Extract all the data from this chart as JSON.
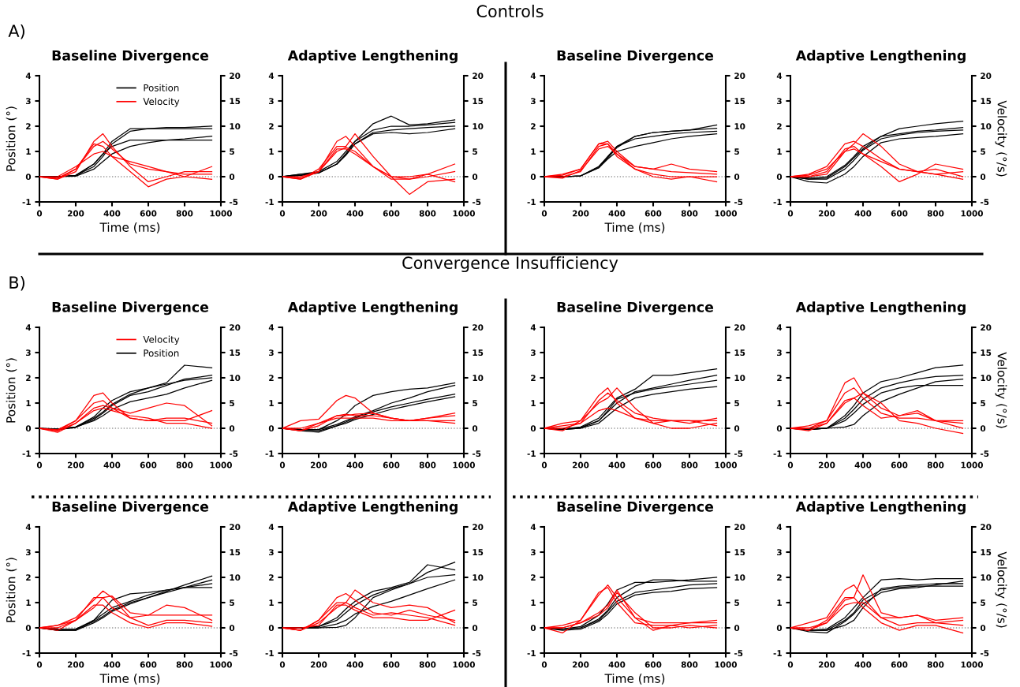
{
  "chart_data": [
    {
      "type": "line",
      "title": "Baseline Divergence",
      "xlabel": "Time (ms)",
      "ylabel": "Position (°)",
      "annotations": [
        "A)",
        "Controls"
      ],
      "legend": "top",
      "xlim": [
        0,
        1000
      ],
      "xticks": [
        0,
        200,
        400,
        600,
        800,
        1000
      ],
      "ylim": [
        -1,
        4
      ],
      "yticks": [
        -1,
        0,
        1,
        2,
        3,
        4
      ],
      "y2lim": [
        -5,
        20
      ],
      "y2ticks": [
        -5,
        0,
        5,
        10,
        15,
        20
      ],
      "ref_lines": [
        {
          "axis": "y",
          "value": 0,
          "color": "#999999",
          "line_style": "dotted"
        }
      ],
      "x": [
        0,
        100,
        200,
        300,
        350,
        400,
        500,
        600,
        700,
        800,
        950
      ],
      "series": [
        {
          "name": "Position",
          "color": "#000000",
          "values": [
            0,
            0,
            0.05,
            0.5,
            0.9,
            1.4,
            1.9,
            1.9,
            1.95,
            1.95,
            2.0
          ]
        },
        {
          "color": "#000000",
          "values": [
            0,
            0,
            0.05,
            0.4,
            0.8,
            1.3,
            1.8,
            1.9,
            1.9,
            1.9,
            1.9
          ]
        },
        {
          "color": "#000000",
          "values": [
            0,
            0,
            0.02,
            0.3,
            0.6,
            0.9,
            1.2,
            1.35,
            1.45,
            1.5,
            1.6
          ]
        },
        {
          "color": "#000000",
          "values": [
            0,
            0,
            0.05,
            0.5,
            0.9,
            1.2,
            1.45,
            1.45,
            1.45,
            1.45,
            1.45
          ]
        },
        {
          "name": "Velocity",
          "color": "#ff0000",
          "axis": "y2",
          "values": [
            0,
            -0.5,
            1,
            7,
            8.5,
            6,
            2,
            -1,
            0,
            1,
            1
          ]
        },
        {
          "color": "#ff0000",
          "axis": "y2",
          "values": [
            0,
            -0.3,
            1.5,
            6,
            7,
            5.5,
            2.5,
            1.5,
            1,
            0.5,
            0.5
          ]
        },
        {
          "color": "#ff0000",
          "axis": "y2",
          "values": [
            0,
            0,
            2,
            4.5,
            5,
            4,
            3,
            2,
            1,
            0,
            -0.5
          ]
        },
        {
          "color": "#ff0000",
          "axis": "y2",
          "values": [
            0,
            -0.5,
            1.5,
            6.5,
            6,
            4,
            1,
            -2,
            -0.5,
            0,
            2
          ]
        }
      ]
    },
    {
      "type": "line",
      "title": "Adaptive Lengthening",
      "xlim": [
        0,
        1000
      ],
      "xticks": [
        0,
        200,
        400,
        600,
        800,
        1000
      ],
      "ylim": [
        -1,
        4
      ],
      "yticks": [
        -1,
        0,
        1,
        2,
        3,
        4
      ],
      "y2lim": [
        -5,
        20
      ],
      "y2ticks": [
        -5,
        0,
        5,
        10,
        15,
        20
      ],
      "ref_lines": [
        {
          "axis": "y",
          "value": 0,
          "color": "#999999",
          "line_style": "dotted"
        }
      ],
      "x": [
        0,
        100,
        200,
        300,
        350,
        400,
        500,
        600,
        700,
        800,
        950
      ],
      "series": [
        {
          "color": "#000000",
          "values": [
            0,
            0.1,
            0.2,
            0.6,
            1.0,
            1.4,
            1.85,
            2.0,
            2.0,
            2.05,
            2.15
          ]
        },
        {
          "color": "#000000",
          "values": [
            0,
            0.1,
            0.15,
            0.5,
            0.9,
            1.4,
            2.1,
            2.4,
            2.05,
            2.1,
            2.25
          ]
        },
        {
          "color": "#000000",
          "values": [
            0,
            0.05,
            0.15,
            0.5,
            0.85,
            1.3,
            1.7,
            1.75,
            1.7,
            1.75,
            1.9
          ]
        },
        {
          "color": "#000000",
          "values": [
            0,
            0.05,
            0.15,
            0.5,
            0.9,
            1.3,
            1.75,
            1.85,
            1.9,
            1.95,
            2.0
          ]
        },
        {
          "color": "#ff0000",
          "axis": "y2",
          "values": [
            0,
            -0.3,
            1,
            7,
            8,
            6,
            2,
            0,
            -0.5,
            0,
            1
          ]
        },
        {
          "color": "#ff0000",
          "axis": "y2",
          "values": [
            0,
            -0.5,
            1,
            5,
            5.8,
            5,
            2,
            -0.5,
            -0.5,
            0.5,
            -1
          ]
        },
        {
          "color": "#ff0000",
          "axis": "y2",
          "values": [
            0,
            -0.5,
            1.5,
            6,
            6,
            8.5,
            4,
            0,
            -3.5,
            -1,
            -0.5
          ]
        },
        {
          "color": "#ff0000",
          "axis": "y2",
          "values": [
            0,
            0,
            1,
            5.5,
            5.5,
            4.5,
            2,
            0,
            0,
            0.5,
            2.5
          ]
        }
      ]
    },
    {
      "type": "line",
      "title": "Baseline Divergence",
      "xlabel": "Time (ms)",
      "xlim": [
        0,
        1000
      ],
      "xticks": [
        0,
        200,
        400,
        600,
        800,
        1000
      ],
      "ylim": [
        -1,
        4
      ],
      "yticks": [
        -1,
        0,
        1,
        2,
        3,
        4
      ],
      "y2lim": [
        -5,
        20
      ],
      "y2ticks": [
        -5,
        0,
        5,
        10,
        15,
        20
      ],
      "ref_lines": [
        {
          "axis": "y",
          "value": 0,
          "color": "#999999",
          "line_style": "dotted"
        }
      ],
      "x": [
        0,
        100,
        200,
        300,
        350,
        400,
        500,
        600,
        700,
        800,
        950
      ],
      "series": [
        {
          "color": "#000000",
          "values": [
            0,
            0,
            0.03,
            0.4,
            0.8,
            1.2,
            1.6,
            1.75,
            1.8,
            1.85,
            1.92
          ]
        },
        {
          "color": "#000000",
          "values": [
            0,
            0,
            0.03,
            0.35,
            0.75,
            1.15,
            1.6,
            1.75,
            1.8,
            1.85,
            2.05
          ]
        },
        {
          "color": "#000000",
          "values": [
            0,
            0,
            0.03,
            0.4,
            0.8,
            1.2,
            1.5,
            1.6,
            1.7,
            1.75,
            1.8
          ]
        },
        {
          "color": "#000000",
          "values": [
            0,
            0,
            0.03,
            0.35,
            0.7,
            1.0,
            1.2,
            1.35,
            1.5,
            1.6,
            1.7
          ]
        },
        {
          "color": "#ff0000",
          "axis": "y2",
          "values": [
            0,
            0.5,
            1.5,
            6.5,
            7,
            5,
            2,
            1.5,
            1,
            0.8,
            0.5
          ]
        },
        {
          "color": "#ff0000",
          "axis": "y2",
          "values": [
            0,
            0,
            1,
            6,
            6.5,
            4.5,
            2,
            1.5,
            2.5,
            1.5,
            1
          ]
        },
        {
          "color": "#ff0000",
          "axis": "y2",
          "values": [
            0,
            -0.3,
            1.2,
            5.5,
            6,
            4.5,
            1.5,
            0.5,
            0,
            0,
            0
          ]
        },
        {
          "color": "#ff0000",
          "axis": "y2",
          "values": [
            0,
            0.3,
            1.5,
            6.5,
            6.5,
            4,
            1.5,
            0,
            -0.5,
            0,
            -1
          ]
        }
      ]
    },
    {
      "type": "line",
      "title": "Adaptive Lengthening",
      "y2label": "Velocity (°/s)",
      "xlim": [
        0,
        1000
      ],
      "xticks": [
        0,
        200,
        400,
        600,
        800,
        1000
      ],
      "ylim": [
        -1,
        4
      ],
      "yticks": [
        -1,
        0,
        1,
        2,
        3,
        4
      ],
      "y2lim": [
        -5,
        20
      ],
      "y2ticks": [
        -5,
        0,
        5,
        10,
        15,
        20
      ],
      "ref_lines": [
        {
          "axis": "y",
          "value": 0,
          "color": "#999999",
          "line_style": "dotted"
        }
      ],
      "x": [
        0,
        100,
        200,
        300,
        350,
        400,
        500,
        600,
        700,
        800,
        950
      ],
      "series": [
        {
          "color": "#000000",
          "values": [
            0,
            -0.1,
            -0.05,
            0.4,
            0.75,
            1.1,
            1.6,
            1.9,
            2.0,
            2.1,
            2.2
          ]
        },
        {
          "color": "#000000",
          "values": [
            0,
            -0.05,
            0,
            0.45,
            0.8,
            1.2,
            1.6,
            1.7,
            1.8,
            1.85,
            1.95
          ]
        },
        {
          "color": "#000000",
          "values": [
            0,
            -0.2,
            -0.25,
            0.1,
            0.4,
            0.8,
            1.35,
            1.5,
            1.55,
            1.6,
            1.7
          ]
        },
        {
          "color": "#000000",
          "values": [
            0,
            -0.1,
            -0.1,
            0.3,
            0.65,
            1.05,
            1.5,
            1.65,
            1.75,
            1.8,
            1.85
          ]
        },
        {
          "color": "#ff0000",
          "axis": "y2",
          "values": [
            0,
            0.5,
            2,
            6.5,
            7,
            6,
            3.5,
            1.5,
            1,
            1.5,
            0
          ]
        },
        {
          "color": "#ff0000",
          "axis": "y2",
          "values": [
            0,
            0.3,
            1.5,
            5,
            6.5,
            8.5,
            6,
            2.5,
            1,
            0.5,
            1
          ]
        },
        {
          "color": "#ff0000",
          "axis": "y2",
          "values": [
            0,
            0,
            1,
            5.5,
            6,
            4.5,
            2,
            -1,
            0.5,
            2.5,
            1.5
          ]
        },
        {
          "color": "#ff0000",
          "axis": "y2",
          "values": [
            0,
            0,
            0.5,
            5,
            5.5,
            4.5,
            3,
            1.5,
            1,
            0.5,
            -0.5
          ]
        }
      ]
    },
    {
      "type": "line",
      "title": "Baseline Divergence",
      "ylabel": "Position (°)",
      "annotations": [
        "B)",
        "Convergence Insufficiency"
      ],
      "legend": "top",
      "xlim": [
        0,
        1000
      ],
      "xticks": [
        0,
        200,
        400,
        600,
        800,
        1000
      ],
      "ylim": [
        -1,
        4
      ],
      "yticks": [
        -1,
        0,
        1,
        2,
        3,
        4
      ],
      "y2lim": [
        -5,
        20
      ],
      "y2ticks": [
        -5,
        0,
        5,
        10,
        15,
        20
      ],
      "ref_lines": [
        {
          "axis": "y",
          "value": 0,
          "color": "#999999",
          "line_style": "dotted"
        }
      ],
      "x": [
        0,
        100,
        200,
        300,
        350,
        400,
        500,
        600,
        700,
        800,
        950
      ],
      "series": [
        {
          "name": "Velocity",
          "color": "#ff0000",
          "axis": "y2",
          "values": [
            0,
            -0.5,
            1.5,
            6.5,
            7,
            5,
            2,
            1.5,
            2,
            2,
            1
          ]
        },
        {
          "color": "#ff0000",
          "axis": "y2",
          "values": [
            0,
            -0.8,
            1,
            4,
            4.5,
            4,
            3,
            4,
            5,
            4.5,
            0.5
          ]
        },
        {
          "color": "#ff0000",
          "axis": "y2",
          "values": [
            0,
            -0.3,
            1.5,
            5,
            5.5,
            4,
            2,
            1.5,
            1.5,
            1.5,
            3.5
          ]
        },
        {
          "color": "#ff0000",
          "axis": "y2",
          "values": [
            0,
            -0.5,
            1,
            3.5,
            4,
            3.5,
            2.5,
            2,
            1,
            1,
            0
          ]
        },
        {
          "name": "Position",
          "color": "#000000",
          "values": [
            0,
            -0.05,
            0.05,
            0.4,
            0.65,
            0.95,
            1.35,
            1.6,
            1.8,
            2.5,
            2.4
          ]
        },
        {
          "color": "#000000",
          "values": [
            0,
            -0.05,
            0.03,
            0.35,
            0.6,
            0.9,
            1.3,
            1.45,
            1.7,
            1.95,
            2.1
          ]
        },
        {
          "color": "#000000",
          "values": [
            0,
            -0.03,
            0.05,
            0.3,
            0.5,
            0.75,
            1.05,
            1.2,
            1.35,
            1.6,
            1.9
          ]
        },
        {
          "color": "#000000",
          "values": [
            0,
            -0.03,
            0.05,
            0.45,
            0.8,
            1.1,
            1.45,
            1.6,
            1.75,
            1.9,
            2.0
          ]
        }
      ]
    },
    {
      "type": "line",
      "title": "Adaptive Lengthening",
      "xlim": [
        0,
        1000
      ],
      "xticks": [
        0,
        200,
        400,
        600,
        800,
        1000
      ],
      "ylim": [
        -1,
        4
      ],
      "yticks": [
        -1,
        0,
        1,
        2,
        3,
        4
      ],
      "y2lim": [
        -5,
        20
      ],
      "y2ticks": [
        -5,
        0,
        5,
        10,
        15,
        20
      ],
      "ref_lines": [
        {
          "axis": "y",
          "value": 0,
          "color": "#999999",
          "line_style": "dotted"
        }
      ],
      "x": [
        0,
        100,
        200,
        300,
        350,
        400,
        500,
        600,
        700,
        800,
        950
      ],
      "series": [
        {
          "color": "#000000",
          "values": [
            0,
            -0.05,
            -0.05,
            0.3,
            0.55,
            0.9,
            1.3,
            1.45,
            1.55,
            1.6,
            1.8
          ]
        },
        {
          "color": "#000000",
          "values": [
            0,
            -0.05,
            -0.05,
            0.15,
            0.3,
            0.45,
            0.7,
            1.0,
            1.2,
            1.45,
            1.7
          ]
        },
        {
          "color": "#000000",
          "values": [
            0,
            -0.1,
            -0.15,
            0.1,
            0.2,
            0.35,
            0.55,
            0.75,
            0.9,
            1.05,
            1.25
          ]
        },
        {
          "color": "#000000",
          "values": [
            0,
            -0.05,
            -0.1,
            0.1,
            0.25,
            0.4,
            0.65,
            0.85,
            1.0,
            1.15,
            1.35
          ]
        },
        {
          "color": "#ff0000",
          "axis": "y2",
          "values": [
            0,
            1.5,
            1.8,
            5.5,
            6.5,
            6,
            3,
            2,
            1.5,
            2,
            2.5
          ]
        },
        {
          "color": "#ff0000",
          "axis": "y2",
          "values": [
            0,
            -0.5,
            1,
            2.5,
            2.5,
            2.8,
            3,
            2,
            1.5,
            2,
            3
          ]
        },
        {
          "color": "#ff0000",
          "axis": "y2",
          "values": [
            0,
            -0.5,
            0.5,
            2.5,
            2.8,
            2.5,
            2.5,
            2,
            1.5,
            1.5,
            1.5
          ]
        },
        {
          "color": "#ff0000",
          "axis": "y2",
          "values": [
            0,
            0,
            1,
            2,
            2,
            2,
            2,
            1.5,
            1.5,
            1.5,
            1
          ]
        }
      ]
    },
    {
      "type": "line",
      "title": "Baseline Divergence",
      "xlim": [
        0,
        1000
      ],
      "xticks": [
        0,
        200,
        400,
        600,
        800,
        1000
      ],
      "ylim": [
        -1,
        4
      ],
      "yticks": [
        -1,
        0,
        1,
        2,
        3,
        4
      ],
      "y2lim": [
        -5,
        20
      ],
      "y2ticks": [
        -5,
        0,
        5,
        10,
        15,
        20
      ],
      "ref_lines": [
        {
          "axis": "y",
          "value": 0,
          "color": "#999999",
          "line_style": "dotted"
        }
      ],
      "x": [
        0,
        100,
        200,
        300,
        350,
        400,
        500,
        600,
        700,
        800,
        950
      ],
      "series": [
        {
          "color": "#000000",
          "values": [
            0,
            -0.03,
            0.05,
            0.4,
            0.8,
            1.2,
            1.55,
            2.1,
            2.1,
            2.2,
            2.35
          ]
        },
        {
          "color": "#000000",
          "values": [
            0,
            -0.03,
            0.03,
            0.3,
            0.65,
            1.0,
            1.45,
            1.6,
            1.75,
            1.9,
            2.1
          ]
        },
        {
          "color": "#000000",
          "values": [
            0,
            -0.05,
            0,
            0.3,
            0.7,
            1.15,
            1.4,
            1.55,
            1.65,
            1.75,
            1.9
          ]
        },
        {
          "color": "#000000",
          "values": [
            0,
            -0.05,
            0,
            0.2,
            0.5,
            0.8,
            1.2,
            1.35,
            1.45,
            1.55,
            1.65
          ]
        },
        {
          "color": "#ff0000",
          "axis": "y2",
          "values": [
            0,
            1,
            1.5,
            6.5,
            8,
            5,
            2,
            1,
            1.5,
            1.5,
            1.5
          ]
        },
        {
          "color": "#ff0000",
          "axis": "y2",
          "values": [
            0,
            0,
            1,
            5.5,
            7,
            5.5,
            3,
            2,
            1.5,
            1.5,
            0.5
          ]
        },
        {
          "color": "#ff0000",
          "axis": "y2",
          "values": [
            0,
            -0.5,
            1.5,
            5,
            6,
            8,
            4,
            1,
            0,
            0,
            1.0
          ]
        },
        {
          "color": "#ff0000",
          "axis": "y2",
          "values": [
            0,
            0.5,
            1,
            3.5,
            4,
            3.5,
            2,
            1.5,
            1.5,
            1,
            2.0
          ]
        }
      ]
    },
    {
      "type": "line",
      "title": "Adaptive Lengthening",
      "y2label": "Velocity (°/s)",
      "xlim": [
        0,
        1000
      ],
      "xticks": [
        0,
        200,
        400,
        600,
        800,
        1000
      ],
      "ylim": [
        -1,
        4
      ],
      "yticks": [
        -1,
        0,
        1,
        2,
        3,
        4
      ],
      "y2lim": [
        -5,
        20
      ],
      "y2ticks": [
        -5,
        0,
        5,
        10,
        15,
        20
      ],
      "ref_lines": [
        {
          "axis": "y",
          "value": 0,
          "color": "#999999",
          "line_style": "dotted"
        }
      ],
      "x": [
        0,
        100,
        200,
        300,
        350,
        400,
        500,
        600,
        700,
        800,
        950
      ],
      "series": [
        {
          "color": "#000000",
          "values": [
            0,
            -0.05,
            0,
            0.5,
            0.9,
            1.4,
            1.85,
            2.0,
            2.2,
            2.4,
            2.5
          ]
        },
        {
          "color": "#000000",
          "values": [
            0,
            -0.05,
            0,
            0.4,
            0.75,
            1.15,
            1.6,
            1.8,
            1.95,
            2.05,
            2.1
          ]
        },
        {
          "color": "#000000",
          "values": [
            0,
            -0.05,
            0,
            0.3,
            0.6,
            0.95,
            1.4,
            1.6,
            1.7,
            1.7,
            1.7
          ]
        },
        {
          "color": "#000000",
          "values": [
            0,
            0,
            0,
            0.05,
            0.15,
            0.5,
            1.05,
            1.35,
            1.6,
            1.85,
            1.95
          ]
        },
        {
          "color": "#ff0000",
          "axis": "y2",
          "values": [
            0,
            0.5,
            1.5,
            9,
            10,
            7,
            4,
            2.5,
            3,
            1.5,
            1
          ]
        },
        {
          "color": "#ff0000",
          "axis": "y2",
          "values": [
            0,
            0,
            1.5,
            7,
            8,
            6,
            3,
            2,
            2,
            1.5,
            0
          ]
        },
        {
          "color": "#ff0000",
          "axis": "y2",
          "values": [
            0,
            -0.5,
            1,
            5,
            6,
            7,
            5,
            1.5,
            1,
            0,
            -1
          ]
        },
        {
          "color": "#ff0000",
          "axis": "y2",
          "values": [
            0,
            0,
            1,
            5.5,
            6,
            4.5,
            2,
            2.5,
            3.5,
            1.5,
            1.5
          ]
        }
      ]
    },
    {
      "type": "line",
      "title": "Baseline Divergence",
      "xlabel": "Time (ms)",
      "ylabel": "Position (°)",
      "xlim": [
        0,
        1000
      ],
      "xticks": [
        0,
        200,
        400,
        600,
        800,
        1000
      ],
      "ylim": [
        -1,
        4
      ],
      "yticks": [
        -1,
        0,
        1,
        2,
        3,
        4
      ],
      "y2lim": [
        -5,
        20
      ],
      "y2ticks": [
        -5,
        0,
        5,
        10,
        15,
        20
      ],
      "ref_lines": [
        {
          "axis": "y",
          "value": 0,
          "color": "#999999",
          "line_style": "dotted"
        }
      ],
      "x": [
        0,
        100,
        200,
        300,
        350,
        400,
        500,
        600,
        700,
        800,
        950
      ],
      "series": [
        {
          "color": "#000000",
          "values": [
            0,
            -0.05,
            -0.05,
            0.3,
            0.7,
            1.1,
            1.35,
            1.4,
            1.5,
            1.6,
            1.75
          ]
        },
        {
          "color": "#000000",
          "values": [
            0,
            -0.1,
            -0.1,
            0.2,
            0.4,
            0.65,
            0.95,
            1.2,
            1.4,
            1.6,
            1.9
          ]
        },
        {
          "color": "#000000",
          "values": [
            0,
            -0.1,
            -0.1,
            0.3,
            0.55,
            0.8,
            1.05,
            1.3,
            1.5,
            1.6,
            1.6
          ]
        },
        {
          "color": "#000000",
          "values": [
            0,
            -0.05,
            -0.05,
            0.25,
            0.45,
            0.7,
            1.0,
            1.2,
            1.45,
            1.7,
            2.05
          ]
        },
        {
          "color": "#ff0000",
          "axis": "y2",
          "values": [
            0,
            0.5,
            2,
            5.5,
            7.3,
            6,
            2,
            0.5,
            1.5,
            1.5,
            1
          ]
        },
        {
          "color": "#ff0000",
          "axis": "y2",
          "values": [
            0,
            0.5,
            1.5,
            4,
            6,
            6.3,
            3,
            2.5,
            2.5,
            2.5,
            2.5
          ]
        },
        {
          "color": "#ff0000",
          "axis": "y2",
          "values": [
            0,
            -0.5,
            1.5,
            6,
            6,
            4,
            2,
            2.5,
            4.5,
            4,
            1.5
          ]
        },
        {
          "color": "#ff0000",
          "axis": "y2",
          "values": [
            0,
            0,
            1.5,
            4.5,
            4.5,
            3,
            1,
            0,
            1,
            1,
            0.3
          ]
        }
      ]
    },
    {
      "type": "line",
      "title": "Adaptive Lengthening",
      "xlim": [
        0,
        1000
      ],
      "xticks": [
        0,
        200,
        400,
        600,
        800,
        1000
      ],
      "ylim": [
        -1,
        4
      ],
      "yticks": [
        -1,
        0,
        1,
        2,
        3,
        4
      ],
      "y2lim": [
        -5,
        20
      ],
      "y2ticks": [
        -5,
        0,
        5,
        10,
        15,
        20
      ],
      "ref_lines": [
        {
          "axis": "y",
          "value": 0,
          "color": "#999999",
          "line_style": "dotted"
        }
      ],
      "x": [
        0,
        100,
        200,
        300,
        350,
        400,
        500,
        600,
        700,
        800,
        950
      ],
      "series": [
        {
          "color": "#000000",
          "values": [
            0,
            0,
            0.05,
            0.4,
            0.75,
            1.05,
            1.45,
            1.6,
            1.8,
            2.5,
            2.3
          ]
        },
        {
          "color": "#000000",
          "values": [
            0,
            0,
            0.05,
            0.3,
            0.6,
            0.9,
            1.3,
            1.55,
            1.75,
            2.0,
            2.1
          ]
        },
        {
          "color": "#000000",
          "values": [
            0,
            0,
            0,
            0.15,
            0.3,
            0.55,
            0.85,
            1.05,
            1.3,
            1.55,
            1.9
          ]
        },
        {
          "color": "#000000",
          "values": [
            0,
            0,
            0,
            0.02,
            0.1,
            0.4,
            1.2,
            1.5,
            1.75,
            2.2,
            2.6
          ]
        },
        {
          "color": "#ff0000",
          "axis": "y2",
          "values": [
            0,
            -0.5,
            1.5,
            6,
            6.8,
            5.5,
            3,
            2.5,
            3.5,
            2.5,
            1.5
          ]
        },
        {
          "color": "#ff0000",
          "axis": "y2",
          "values": [
            0,
            -0.5,
            1,
            4,
            5,
            7.5,
            5,
            4,
            4.5,
            4,
            1
          ]
        },
        {
          "color": "#ff0000",
          "axis": "y2",
          "values": [
            0,
            -0.5,
            1.5,
            5,
            5,
            4,
            2.5,
            3,
            2.5,
            2,
            0.5
          ]
        },
        {
          "color": "#ff0000",
          "axis": "y2",
          "values": [
            0,
            0,
            0.5,
            4.5,
            4.5,
            3.5,
            2,
            2,
            1.5,
            1.5,
            3.5
          ]
        }
      ]
    },
    {
      "type": "line",
      "title": "Baseline Divergence",
      "xlabel": "Time (ms)",
      "xlim": [
        0,
        1000
      ],
      "xticks": [
        0,
        200,
        400,
        600,
        800,
        1000
      ],
      "ylim": [
        -1,
        4
      ],
      "yticks": [
        -1,
        0,
        1,
        2,
        3,
        4
      ],
      "y2lim": [
        -5,
        20
      ],
      "y2ticks": [
        -5,
        0,
        5,
        10,
        15,
        20
      ],
      "ref_lines": [
        {
          "axis": "y",
          "value": 0,
          "color": "#999999",
          "line_style": "dotted"
        }
      ],
      "x": [
        0,
        100,
        200,
        300,
        350,
        400,
        500,
        600,
        700,
        800,
        950
      ],
      "series": [
        {
          "color": "#000000",
          "values": [
            0,
            -0.05,
            0.05,
            0.5,
            0.95,
            1.5,
            1.8,
            1.8,
            1.85,
            1.9,
            2.0
          ]
        },
        {
          "color": "#000000",
          "values": [
            0,
            -0.05,
            0,
            0.35,
            0.7,
            1.2,
            1.65,
            1.9,
            1.9,
            1.85,
            1.85
          ]
        },
        {
          "color": "#000000",
          "values": [
            0,
            -0.1,
            -0.05,
            0.25,
            0.55,
            0.95,
            1.3,
            1.4,
            1.45,
            1.55,
            1.6
          ]
        },
        {
          "color": "#000000",
          "values": [
            0,
            -0.05,
            0,
            0.3,
            0.65,
            1.05,
            1.4,
            1.5,
            1.6,
            1.7,
            1.75
          ]
        },
        {
          "color": "#ff0000",
          "axis": "y2",
          "values": [
            0,
            0.5,
            1.5,
            6.5,
            8.5,
            6,
            2,
            1,
            1,
            1,
            1.5
          ]
        },
        {
          "color": "#ff0000",
          "axis": "y2",
          "values": [
            0,
            -1,
            1.5,
            7,
            8,
            5,
            1,
            0.5,
            0.5,
            0,
            0.5
          ]
        },
        {
          "color": "#ff0000",
          "axis": "y2",
          "values": [
            0,
            0,
            1,
            3,
            4.5,
            7.5,
            2,
            -0.5,
            0.5,
            1,
            1
          ]
        },
        {
          "color": "#ff0000",
          "axis": "y2",
          "values": [
            0,
            0,
            1,
            2.5,
            4,
            7,
            3,
            0,
            0,
            0.5,
            0
          ]
        }
      ]
    },
    {
      "type": "line",
      "title": "Adaptive Lengthening",
      "y2label": "Velocity (°/s)",
      "xlim": [
        0,
        1000
      ],
      "xticks": [
        0,
        200,
        400,
        600,
        800,
        1000
      ],
      "ylim": [
        -1,
        4
      ],
      "yticks": [
        -1,
        0,
        1,
        2,
        3,
        4
      ],
      "y2lim": [
        -5,
        20
      ],
      "y2ticks": [
        -5,
        0,
        5,
        10,
        15,
        20
      ],
      "ref_lines": [
        {
          "axis": "y",
          "value": 0,
          "color": "#999999",
          "line_style": "dotted"
        }
      ],
      "x": [
        0,
        100,
        200,
        300,
        350,
        400,
        500,
        600,
        700,
        800,
        950
      ],
      "series": [
        {
          "color": "#000000",
          "values": [
            0,
            -0.1,
            -0.05,
            0.4,
            0.8,
            1.2,
            1.9,
            1.95,
            1.9,
            1.95,
            1.95
          ]
        },
        {
          "color": "#000000",
          "values": [
            0,
            -0.1,
            -0.1,
            0.3,
            0.6,
            1.1,
            1.5,
            1.6,
            1.65,
            1.65,
            1.65
          ]
        },
        {
          "color": "#000000",
          "values": [
            0,
            -0.15,
            -0.2,
            0.25,
            0.55,
            0.95,
            1.4,
            1.55,
            1.6,
            1.7,
            1.85
          ]
        },
        {
          "color": "#000000",
          "values": [
            0,
            -0.1,
            -0.1,
            0.1,
            0.3,
            0.8,
            1.55,
            1.65,
            1.7,
            1.75,
            1.75
          ]
        },
        {
          "color": "#ff0000",
          "axis": "y2",
          "values": [
            0,
            1,
            2,
            7.5,
            8.5,
            6,
            2,
            2,
            2.5,
            1,
            1.5
          ]
        },
        {
          "color": "#ff0000",
          "axis": "y2",
          "values": [
            0,
            -0.5,
            1.5,
            6,
            6,
            4,
            1,
            -0.5,
            0.5,
            0.5,
            -1
          ]
        },
        {
          "color": "#ff0000",
          "axis": "y2",
          "values": [
            0,
            0,
            1,
            5.5,
            6,
            10.5,
            3,
            2,
            2.5,
            1.5,
            2
          ]
        },
        {
          "color": "#ff0000",
          "axis": "y2",
          "values": [
            0,
            -0.5,
            1,
            4.5,
            5,
            5,
            2,
            0.5,
            1,
            1,
            0.5
          ]
        }
      ]
    }
  ]
}
